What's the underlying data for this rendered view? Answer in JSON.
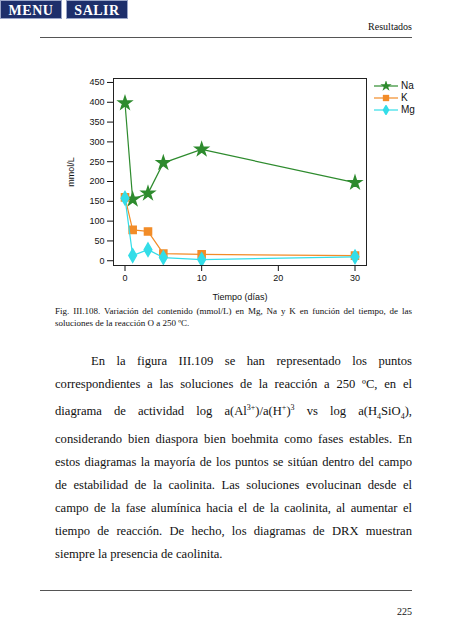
{
  "buttons": [
    "MENU",
    "SALIR"
  ],
  "header": "Resultados",
  "chart_data": {
    "type": "line",
    "x_label": "Tiempo (días)",
    "y_label": "mmol/L",
    "x": [
      0,
      1,
      3,
      5,
      10,
      30
    ],
    "series": [
      {
        "name": "Na",
        "color": "#2e8b2e",
        "marker": "star",
        "values": [
          398,
          155,
          170,
          247,
          281,
          197
        ]
      },
      {
        "name": "K",
        "color": "#f28c28",
        "marker": "square",
        "values": [
          160,
          78,
          74,
          18,
          16,
          13
        ]
      },
      {
        "name": "Mg",
        "color": "#33dde8",
        "marker": "diamond",
        "values": [
          158,
          13,
          28,
          8,
          3,
          10
        ]
      }
    ],
    "xlim": [
      -1.5,
      31.5
    ],
    "xticks": [
      0,
      10,
      20,
      30
    ],
    "ylim": [
      -12,
      460
    ],
    "yticks": [
      0,
      50,
      100,
      150,
      200,
      250,
      300,
      350,
      400,
      450
    ],
    "grid": false,
    "legend": "top-right"
  },
  "caption": "Fig. III.108. Variación del contenido (mmol/L) en Mg, Na y K en función del tiempo, de las soluciones de la reacción O a 250 ºC.",
  "paragraph": [
    {
      "t": "En la figura III.109 se han representado los puntos correspondientes a las soluciones de la reacción a 250 ºC, en el diagrama de actividad log a(Al"
    },
    {
      "sup": "3+"
    },
    {
      "t": ")/a(H"
    },
    {
      "sup": "+"
    },
    {
      "t": ")"
    },
    {
      "sup": "3"
    },
    {
      "t": " vs log a(H"
    },
    {
      "sub": "4"
    },
    {
      "t": "SiO"
    },
    {
      "sub": "4"
    },
    {
      "t": "), considerando bien diaspora bien boehmita como fases estables. En estos diagramas la mayoría de los puntos se sitúan dentro del campo de estabilidad de la caolinita. Las soluciones evolucinan desde el campo de la fase alumínica hacia el de la caolinita, al aumentar el tiempo de reacción. De hecho, los diagramas de DRX muestran siempre la presencia de caolinita."
    }
  ],
  "page_number": "225"
}
